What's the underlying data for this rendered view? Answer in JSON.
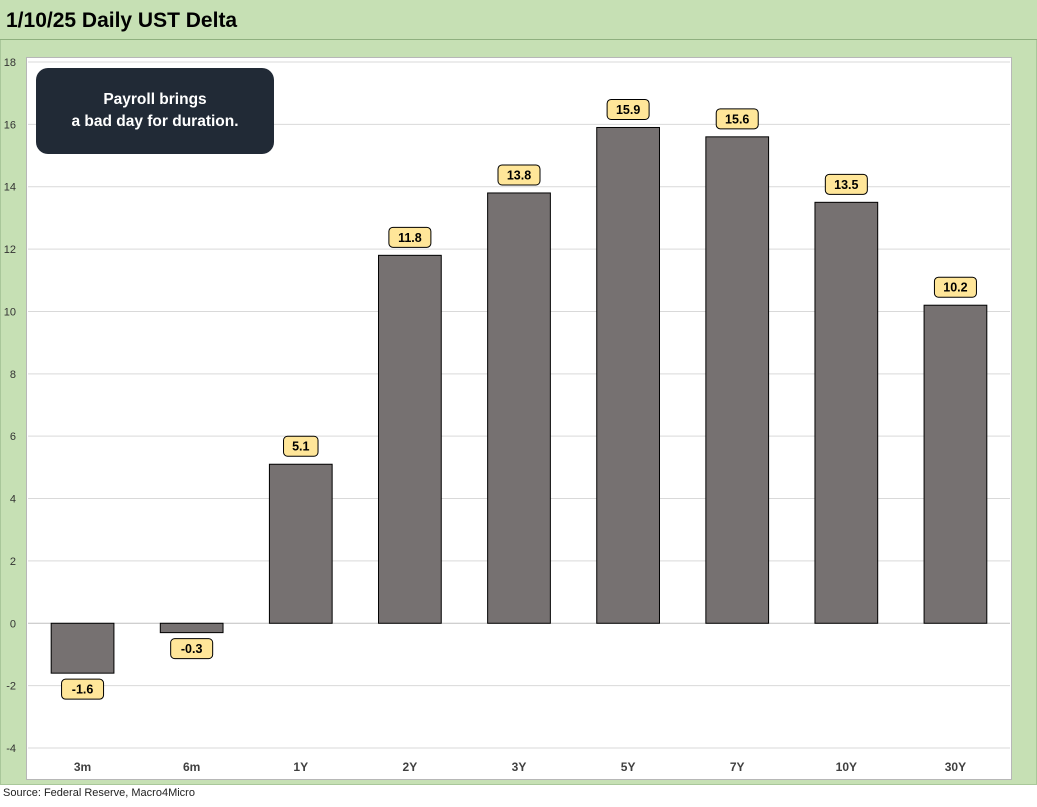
{
  "title": "1/10/25 Daily UST Delta",
  "source": "Source: Federal Reserve, Macro4Micro",
  "annotation": {
    "line1": "Payroll brings",
    "line2": "a bad day for duration."
  },
  "colors": {
    "bar": "#767171",
    "bar_border": "#000000",
    "label_bg": "#ffe699",
    "frame_bg": "#c6e0b4",
    "grid": "#d9d9d9"
  },
  "chart_data": {
    "type": "bar",
    "title": "1/10/25 Daily UST Delta",
    "xlabel": "",
    "ylabel": "",
    "categories": [
      "3m",
      "6m",
      "1Y",
      "2Y",
      "3Y",
      "5Y",
      "7Y",
      "10Y",
      "30Y"
    ],
    "values": [
      -1.6,
      -0.3,
      5.1,
      11.8,
      13.8,
      15.9,
      15.6,
      13.5,
      10.2
    ],
    "data_labels": [
      "-1.6",
      "-0.3",
      "5.1",
      "11.8",
      "13.8",
      "15.9",
      "15.6",
      "13.5",
      "10.2"
    ],
    "ylim": [
      -4,
      18
    ],
    "yticks": [
      -4,
      -2,
      0,
      2,
      4,
      6,
      8,
      10,
      12,
      14,
      16,
      18
    ],
    "grid": true,
    "legend": "none"
  }
}
